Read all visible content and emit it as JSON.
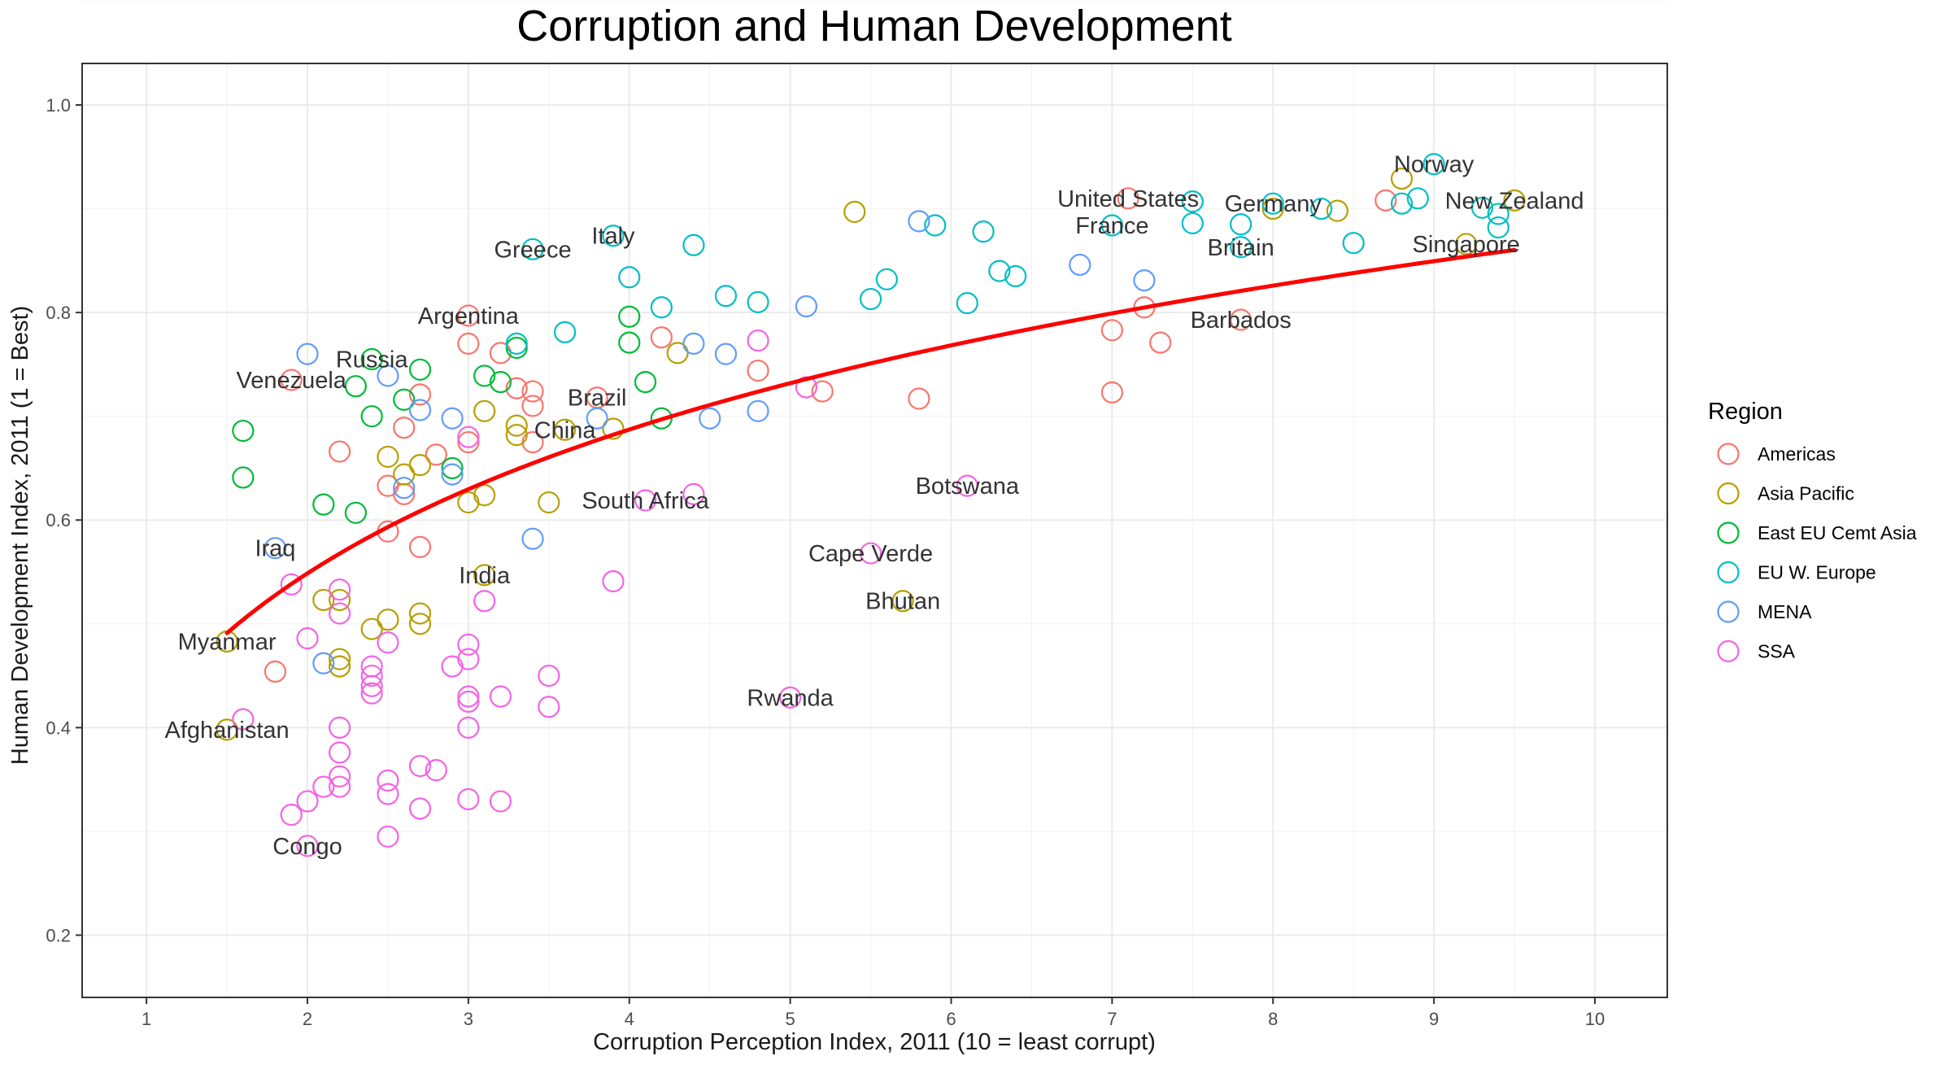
{
  "chart_data": {
    "type": "scatter",
    "title": "Corruption and Human Development",
    "xlabel": "Corruption Perception Index, 2011 (10 = least corrupt)",
    "ylabel": "Human Development Index, 2011 (1 = Best)",
    "xlim": [
      0.6,
      10.45
    ],
    "ylim": [
      0.14,
      1.04
    ],
    "x_ticks": [
      "1",
      "2",
      "3",
      "4",
      "5",
      "6",
      "7",
      "8",
      "9",
      "10"
    ],
    "y_ticks": [
      "0.2",
      "0.4",
      "0.6",
      "0.8",
      "1.0"
    ],
    "grid": true,
    "legend": {
      "title": "Region",
      "placement": "right",
      "items": [
        {
          "label": "Americas",
          "color": "#F8766D"
        },
        {
          "label": "Asia Pacific",
          "color": "#B79F00"
        },
        {
          "label": "East EU Cemt Asia",
          "color": "#00BA38"
        },
        {
          "label": "EU W. Europe",
          "color": "#00BFC4"
        },
        {
          "label": "MENA",
          "color": "#619CFF"
        },
        {
          "label": "SSA",
          "color": "#F564E3"
        }
      ]
    },
    "trend_line": {
      "color": "#FF0000",
      "x_range": [
        1.5,
        9.5
      ],
      "intercept": 0.41,
      "slope": 0.2,
      "form": "log"
    },
    "labels": [
      {
        "text": "Norway",
        "x": 9.0,
        "y": 0.943
      },
      {
        "text": "United States",
        "x": 7.1,
        "y": 0.91
      },
      {
        "text": "Germany",
        "x": 8.0,
        "y": 0.905
      },
      {
        "text": "New Zealand",
        "x": 9.5,
        "y": 0.908
      },
      {
        "text": "France",
        "x": 7.0,
        "y": 0.884
      },
      {
        "text": "Italy",
        "x": 3.9,
        "y": 0.874
      },
      {
        "text": "Britain",
        "x": 7.8,
        "y": 0.863
      },
      {
        "text": "Singapore",
        "x": 9.2,
        "y": 0.866
      },
      {
        "text": "Greece",
        "x": 3.4,
        "y": 0.861
      },
      {
        "text": "Argentina",
        "x": 3.0,
        "y": 0.797
      },
      {
        "text": "Barbados",
        "x": 7.8,
        "y": 0.793
      },
      {
        "text": "Russia",
        "x": 2.4,
        "y": 0.755
      },
      {
        "text": "Venezuela",
        "x": 1.9,
        "y": 0.735
      },
      {
        "text": "Brazil",
        "x": 3.8,
        "y": 0.718
      },
      {
        "text": "China",
        "x": 3.6,
        "y": 0.687
      },
      {
        "text": "Botswana",
        "x": 6.1,
        "y": 0.633
      },
      {
        "text": "South Africa",
        "x": 4.1,
        "y": 0.619
      },
      {
        "text": "Iraq",
        "x": 1.8,
        "y": 0.573
      },
      {
        "text": "Cape Verde",
        "x": 5.5,
        "y": 0.568
      },
      {
        "text": "India",
        "x": 3.1,
        "y": 0.547
      },
      {
        "text": "Bhutan",
        "x": 5.7,
        "y": 0.522
      },
      {
        "text": "Myanmar",
        "x": 1.5,
        "y": 0.483
      },
      {
        "text": "Rwanda",
        "x": 5.0,
        "y": 0.429
      },
      {
        "text": "Afghanistan",
        "x": 1.5,
        "y": 0.398
      },
      {
        "text": "Congo",
        "x": 2.0,
        "y": 0.286
      }
    ],
    "series": [
      {
        "name": "Americas",
        "color": "#F8766D",
        "points": [
          [
            7.1,
            0.91
          ],
          [
            8.7,
            0.908
          ],
          [
            7.8,
            0.793
          ],
          [
            7.0,
            0.783
          ],
          [
            7.2,
            0.805
          ],
          [
            7.3,
            0.771
          ],
          [
            7.0,
            0.723
          ],
          [
            5.8,
            0.717
          ],
          [
            5.2,
            0.724
          ],
          [
            4.8,
            0.744
          ],
          [
            4.2,
            0.776
          ],
          [
            3.0,
            0.797
          ],
          [
            3.0,
            0.77
          ],
          [
            3.2,
            0.761
          ],
          [
            3.3,
            0.727
          ],
          [
            3.4,
            0.724
          ],
          [
            3.4,
            0.71
          ],
          [
            3.8,
            0.718
          ],
          [
            2.7,
            0.721
          ],
          [
            2.6,
            0.689
          ],
          [
            2.8,
            0.663
          ],
          [
            3.0,
            0.675
          ],
          [
            3.4,
            0.675
          ],
          [
            2.2,
            0.666
          ],
          [
            2.5,
            0.633
          ],
          [
            2.6,
            0.625
          ],
          [
            2.5,
            0.589
          ],
          [
            2.7,
            0.574
          ],
          [
            1.9,
            0.735
          ],
          [
            1.8,
            0.454
          ]
        ]
      },
      {
        "name": "Asia Pacific",
        "color": "#B79F00",
        "points": [
          [
            9.5,
            0.908
          ],
          [
            8.4,
            0.898
          ],
          [
            8.8,
            0.929
          ],
          [
            9.2,
            0.866
          ],
          [
            8.0,
            0.9
          ],
          [
            5.4,
            0.897
          ],
          [
            4.3,
            0.761
          ],
          [
            3.1,
            0.705
          ],
          [
            3.3,
            0.691
          ],
          [
            3.6,
            0.687
          ],
          [
            3.9,
            0.688
          ],
          [
            3.5,
            0.617
          ],
          [
            3.0,
            0.617
          ],
          [
            3.1,
            0.624
          ],
          [
            2.5,
            0.661
          ],
          [
            2.6,
            0.644
          ],
          [
            2.7,
            0.653
          ],
          [
            2.1,
            0.523
          ],
          [
            2.2,
            0.523
          ],
          [
            2.7,
            0.51
          ],
          [
            2.7,
            0.5
          ],
          [
            2.5,
            0.504
          ],
          [
            2.4,
            0.495
          ],
          [
            2.2,
            0.466
          ],
          [
            2.2,
            0.459
          ],
          [
            3.1,
            0.547
          ],
          [
            5.7,
            0.522
          ],
          [
            1.5,
            0.483
          ],
          [
            1.5,
            0.398
          ],
          [
            3.3,
            0.682
          ]
        ]
      },
      {
        "name": "East EU Cemt Asia",
        "color": "#00BA38",
        "points": [
          [
            4.0,
            0.796
          ],
          [
            4.0,
            0.771
          ],
          [
            4.1,
            0.733
          ],
          [
            4.2,
            0.698
          ],
          [
            3.3,
            0.766
          ],
          [
            3.2,
            0.733
          ],
          [
            3.1,
            0.739
          ],
          [
            2.7,
            0.745
          ],
          [
            2.4,
            0.755
          ],
          [
            2.3,
            0.729
          ],
          [
            2.6,
            0.716
          ],
          [
            2.4,
            0.7
          ],
          [
            2.9,
            0.65
          ],
          [
            1.6,
            0.686
          ],
          [
            1.6,
            0.641
          ],
          [
            2.1,
            0.615
          ],
          [
            2.3,
            0.607
          ]
        ]
      },
      {
        "name": "EU W. Europe",
        "color": "#00BFC4",
        "points": [
          [
            9.0,
            0.943
          ],
          [
            9.3,
            0.901
          ],
          [
            9.4,
            0.895
          ],
          [
            9.4,
            0.882
          ],
          [
            8.9,
            0.91
          ],
          [
            8.8,
            0.905
          ],
          [
            8.5,
            0.867
          ],
          [
            8.3,
            0.9
          ],
          [
            8.0,
            0.905
          ],
          [
            7.8,
            0.885
          ],
          [
            7.8,
            0.863
          ],
          [
            7.5,
            0.907
          ],
          [
            7.5,
            0.886
          ],
          [
            7.0,
            0.884
          ],
          [
            6.2,
            0.878
          ],
          [
            6.4,
            0.835
          ],
          [
            6.3,
            0.84
          ],
          [
            6.1,
            0.809
          ],
          [
            5.9,
            0.884
          ],
          [
            5.6,
            0.832
          ],
          [
            5.5,
            0.813
          ],
          [
            4.8,
            0.81
          ],
          [
            4.6,
            0.816
          ],
          [
            4.4,
            0.865
          ],
          [
            4.2,
            0.805
          ],
          [
            4.0,
            0.834
          ],
          [
            3.9,
            0.874
          ],
          [
            3.6,
            0.781
          ],
          [
            3.4,
            0.861
          ],
          [
            3.3,
            0.77
          ]
        ]
      },
      {
        "name": "MENA",
        "color": "#619CFF",
        "points": [
          [
            7.2,
            0.831
          ],
          [
            6.8,
            0.846
          ],
          [
            5.8,
            0.888
          ],
          [
            5.1,
            0.806
          ],
          [
            4.8,
            0.705
          ],
          [
            4.6,
            0.76
          ],
          [
            4.5,
            0.698
          ],
          [
            4.4,
            0.77
          ],
          [
            3.8,
            0.698
          ],
          [
            3.4,
            0.582
          ],
          [
            2.9,
            0.698
          ],
          [
            2.9,
            0.644
          ],
          [
            2.7,
            0.706
          ],
          [
            2.6,
            0.631
          ],
          [
            2.5,
            0.739
          ],
          [
            2.0,
            0.76
          ],
          [
            1.8,
            0.573
          ],
          [
            2.1,
            0.462
          ]
        ]
      },
      {
        "name": "SSA",
        "color": "#F564E3",
        "points": [
          [
            6.1,
            0.633
          ],
          [
            5.5,
            0.568
          ],
          [
            5.0,
            0.429
          ],
          [
            4.8,
            0.773
          ],
          [
            5.1,
            0.728
          ],
          [
            4.4,
            0.625
          ],
          [
            4.1,
            0.619
          ],
          [
            3.9,
            0.541
          ],
          [
            3.5,
            0.45
          ],
          [
            3.5,
            0.42
          ],
          [
            3.2,
            0.43
          ],
          [
            3.2,
            0.329
          ],
          [
            3.1,
            0.522
          ],
          [
            3.0,
            0.48
          ],
          [
            3.0,
            0.466
          ],
          [
            3.0,
            0.43
          ],
          [
            3.0,
            0.4
          ],
          [
            3.0,
            0.331
          ],
          [
            3.0,
            0.68
          ],
          [
            2.9,
            0.459
          ],
          [
            2.8,
            0.359
          ],
          [
            2.7,
            0.363
          ],
          [
            2.7,
            0.322
          ],
          [
            2.5,
            0.482
          ],
          [
            2.5,
            0.349
          ],
          [
            2.5,
            0.336
          ],
          [
            2.5,
            0.295
          ],
          [
            2.4,
            0.459
          ],
          [
            2.4,
            0.45
          ],
          [
            2.4,
            0.44
          ],
          [
            2.4,
            0.433
          ],
          [
            2.2,
            0.533
          ],
          [
            2.2,
            0.51
          ],
          [
            2.2,
            0.4
          ],
          [
            2.2,
            0.376
          ],
          [
            2.2,
            0.353
          ],
          [
            2.2,
            0.343
          ],
          [
            2.1,
            0.343
          ],
          [
            2.0,
            0.486
          ],
          [
            2.0,
            0.329
          ],
          [
            2.0,
            0.286
          ],
          [
            1.9,
            0.538
          ],
          [
            1.9,
            0.316
          ],
          [
            1.6,
            0.408
          ],
          [
            3.0,
            0.425
          ]
        ]
      }
    ]
  }
}
